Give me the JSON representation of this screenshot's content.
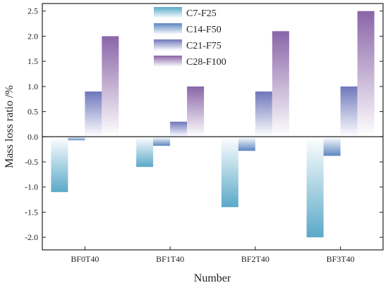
{
  "chart_data": {
    "type": "bar",
    "xlabel": "Number",
    "ylabel": "Mass loss ratio /%",
    "categories": [
      "BF0T40",
      "BF1T40",
      "BF2T40",
      "BF3T40"
    ],
    "ylim": [
      -2.25,
      2.65
    ],
    "y_ticks": [
      2.5,
      2.0,
      1.5,
      1.0,
      0.5,
      0.0,
      -0.5,
      -1.0,
      -1.5,
      -2.0
    ],
    "y_tick_labels": [
      "2.5",
      "2.0",
      "1.5",
      "1.0",
      "0.5",
      "0.0",
      "-0.5",
      "-1.0",
      "-1.5",
      "-2.0"
    ],
    "grid": false,
    "legend_position": "top-center",
    "series": [
      {
        "name": "C7-F25",
        "values": [
          -1.1,
          -0.6,
          -1.4,
          -2.0
        ],
        "color": "#5aa9c8"
      },
      {
        "name": "C14-F50",
        "values": [
          -0.07,
          -0.18,
          -0.28,
          -0.38
        ],
        "color": "#5b86c0"
      },
      {
        "name": "C21-F75",
        "values": [
          0.9,
          0.3,
          0.9,
          1.0
        ],
        "color": "#6e77bb"
      },
      {
        "name": "C28-F100",
        "values": [
          2.0,
          1.0,
          2.1,
          2.5
        ],
        "color": "#8a65a8"
      }
    ]
  }
}
